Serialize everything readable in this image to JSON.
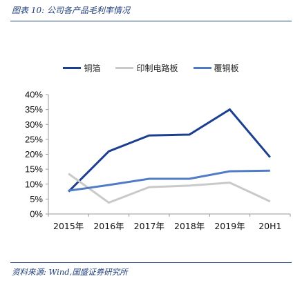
{
  "header": {
    "title": "图表 10:  公司各产品毛利率情况"
  },
  "footer": {
    "source": "资料来源:  Wind,国盛证券研究所"
  },
  "colors": {
    "rule": "#1F3F7A"
  },
  "chart_data": {
    "type": "line",
    "title": "",
    "xlabel": "",
    "ylabel": "",
    "categories": [
      "2015年",
      "2016年",
      "2017年",
      "2018年",
      "2019年",
      "20H1"
    ],
    "ylim": [
      0,
      40
    ],
    "yticks": [
      "0%",
      "5%",
      "10%",
      "15%",
      "20%",
      "25%",
      "30%",
      "35%",
      "40%"
    ],
    "grid": false,
    "legend_position": "top-center",
    "series": [
      {
        "name": "铜箔",
        "color": "#1C3F8F",
        "values": [
          7.5,
          21,
          26.3,
          26.6,
          35,
          19
        ]
      },
      {
        "name": "印制电路板",
        "color": "#C9C9C9",
        "values": [
          13.5,
          3.8,
          9,
          9.5,
          10.5,
          4.2
        ]
      },
      {
        "name": "覆铜板",
        "color": "#4F7CC4",
        "values": [
          7.8,
          9.7,
          11.8,
          11.8,
          14.3,
          14.5
        ]
      }
    ]
  }
}
